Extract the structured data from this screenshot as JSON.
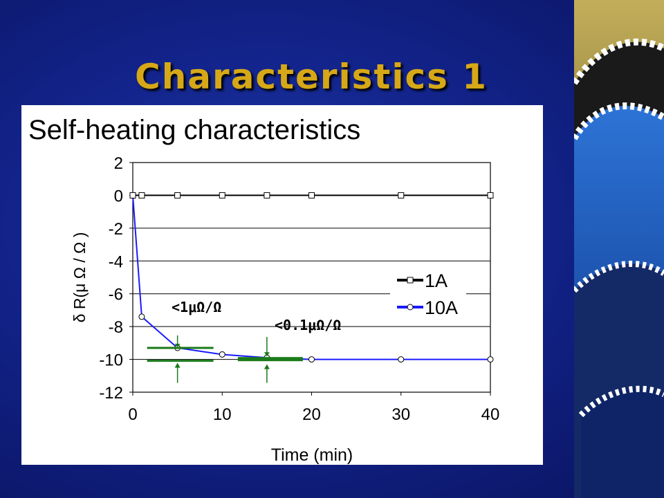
{
  "slide": {
    "title": "Characteristics 1",
    "heading": "Self-heating characteristics"
  },
  "colors": {
    "background": "#12238a",
    "title": "#d6a817",
    "series_1A": "#000000",
    "series_10A": "#1a1aff",
    "annotation": "#1a7a1a"
  },
  "chart_data": {
    "type": "line",
    "xlabel": "Time (min)",
    "ylabel": "δ R(μ Ω / Ω )",
    "xlim": [
      0,
      40
    ],
    "ylim": [
      -12,
      2
    ],
    "xticks": [
      "0",
      "10",
      "20",
      "30",
      "40"
    ],
    "yticks": [
      "2",
      "0",
      "-2",
      "-4",
      "-6",
      "-8",
      "-10",
      "-12"
    ],
    "grid": "horizontal",
    "legend_position": "right",
    "series": [
      {
        "name": "1A",
        "marker": "square",
        "x": [
          0,
          1,
          5,
          10,
          15,
          20,
          30,
          40
        ],
        "y": [
          0,
          0,
          0,
          0,
          0,
          0,
          0,
          0
        ]
      },
      {
        "name": "10A",
        "marker": "circle",
        "x": [
          0,
          1,
          5,
          10,
          15,
          20,
          30,
          40
        ],
        "y": [
          0,
          -7.4,
          -9.3,
          -9.7,
          -9.9,
          -10.0,
          -10.0,
          -10.0
        ]
      }
    ],
    "annotations": [
      {
        "text": "<1μΩ/Ω",
        "x": 5,
        "y_top": -9.3,
        "y_bottom": -10.0
      },
      {
        "text": "<0.1μΩ/Ω",
        "x": 15,
        "y_top": -9.9,
        "y_bottom": -10.0
      }
    ]
  }
}
